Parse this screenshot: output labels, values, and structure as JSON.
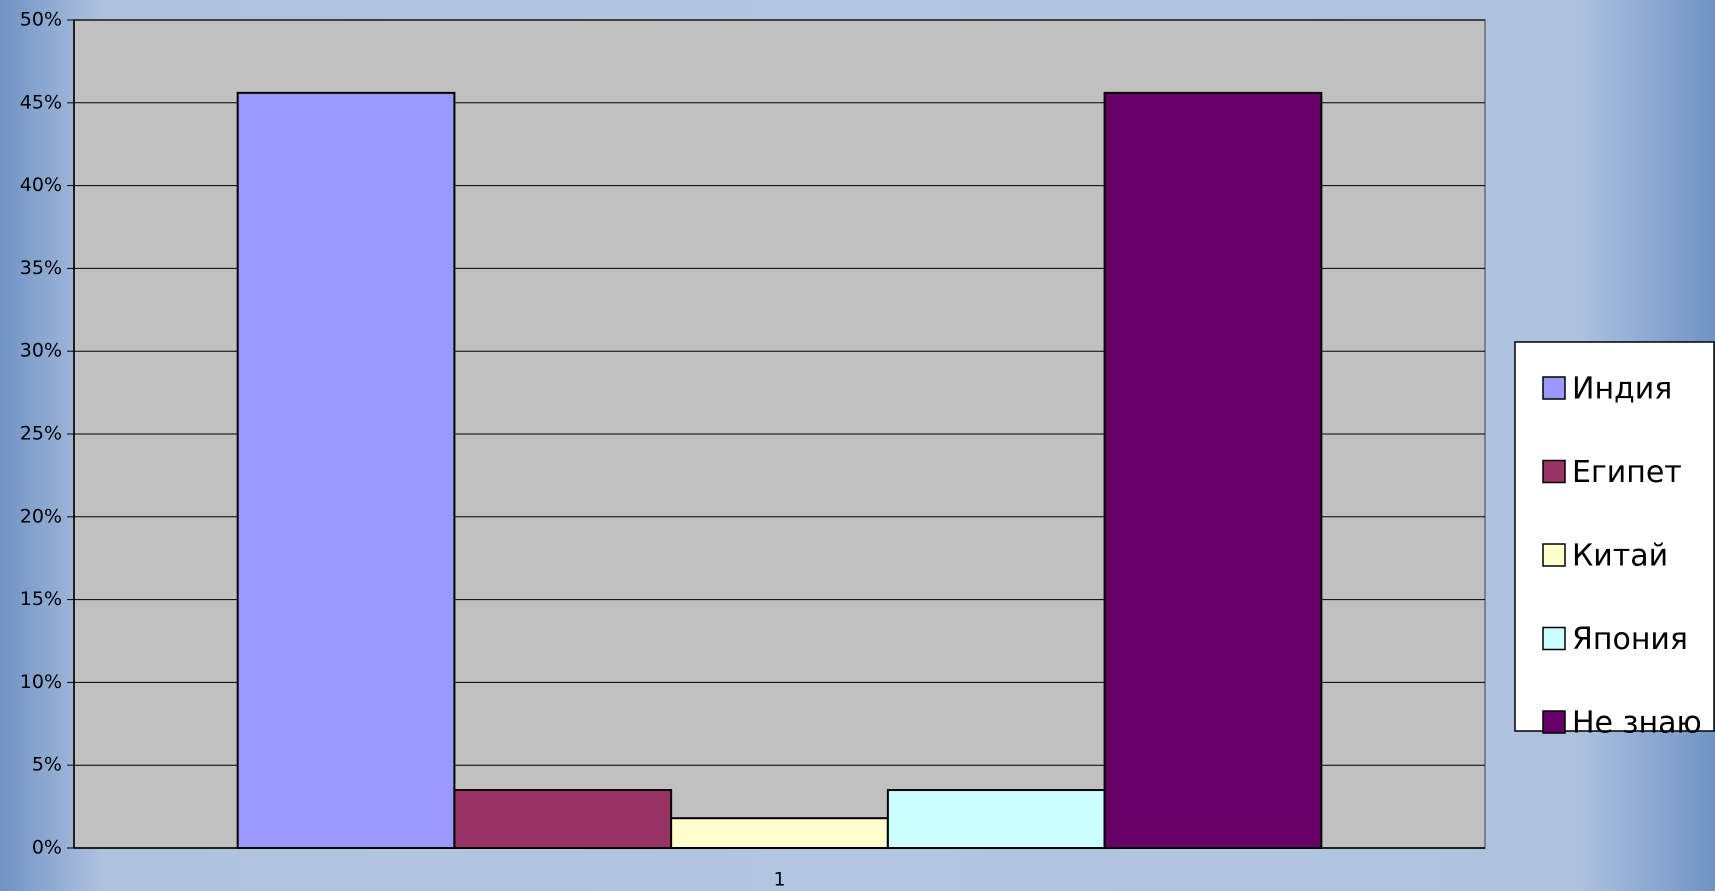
{
  "chart_data": {
    "type": "bar",
    "categories": [
      "1"
    ],
    "series": [
      {
        "name": "Индия",
        "color": "#9999ff",
        "values": [
          45.6
        ]
      },
      {
        "name": "Египет",
        "color": "#993366",
        "values": [
          3.5
        ]
      },
      {
        "name": "Китай",
        "color": "#ffffcc",
        "values": [
          1.8
        ]
      },
      {
        "name": "Япония",
        "color": "#ccffff",
        "values": [
          3.5
        ]
      },
      {
        "name": "Не знаю",
        "color": "#660066",
        "values": [
          45.6
        ]
      }
    ],
    "ylim": [
      0,
      50
    ],
    "yticks": [
      {
        "value": 0,
        "label": "0%"
      },
      {
        "value": 5,
        "label": "5%"
      },
      {
        "value": 10,
        "label": "10%"
      },
      {
        "value": 15,
        "label": "15%"
      },
      {
        "value": 20,
        "label": "20%"
      },
      {
        "value": 25,
        "label": "25%"
      },
      {
        "value": 30,
        "label": "30%"
      },
      {
        "value": 35,
        "label": "35%"
      },
      {
        "value": 40,
        "label": "40%"
      },
      {
        "value": 45,
        "label": "45%"
      },
      {
        "value": 50,
        "label": "50%"
      }
    ],
    "grid": true,
    "legend": "right",
    "plot_background": "#c0c0c0"
  }
}
